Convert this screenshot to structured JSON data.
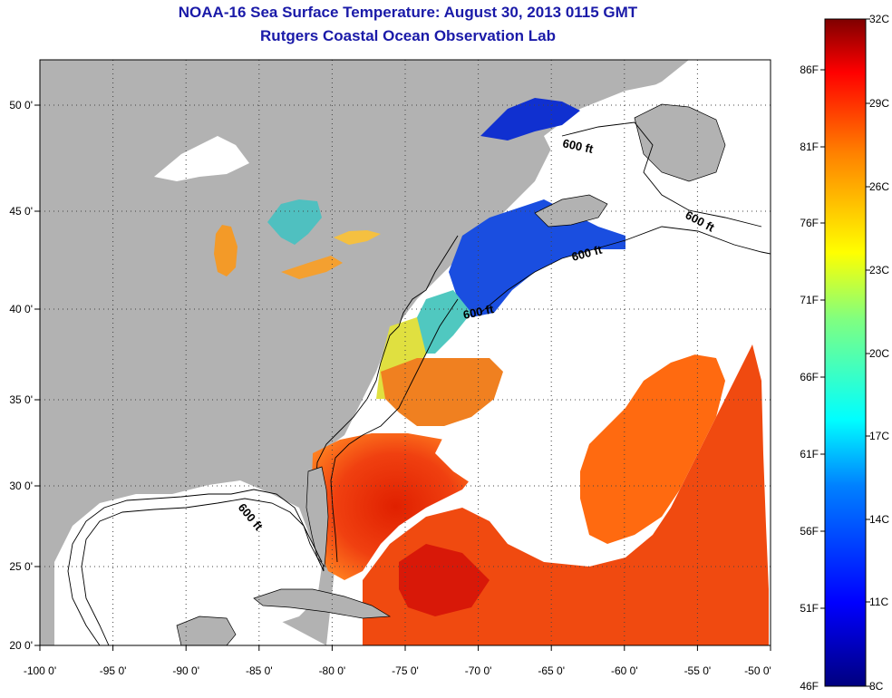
{
  "title": "NOAA-16 Sea Surface Temperature:  August 30, 2013 0115 GMT",
  "subtitle": "Rutgers Coastal Ocean Observation Lab",
  "map": {
    "lon_ticks": [
      "-100 0'",
      "-95 0'",
      "-90 0'",
      "-85 0'",
      "-80 0'",
      "-75 0'",
      "-70 0'",
      "-65 0'",
      "-60 0'",
      "-55 0'",
      "-50 0'"
    ],
    "lat_ticks": [
      "50 0'",
      "45 0'",
      "40 0'",
      "35 0'",
      "30 0'",
      "25 0'",
      "20 0'"
    ],
    "isobath_labels": [
      "600 ft",
      "600 ft",
      "600 ft",
      "600 ft",
      "600 ft"
    ],
    "colors": {
      "land": "#b2b2b2",
      "cloud": "#ffffff",
      "grid": "#444444"
    }
  },
  "colorbar": {
    "fahrenheit_labels": [
      "86F",
      "81F",
      "76F",
      "71F",
      "66F",
      "61F",
      "56F",
      "51F",
      "46F"
    ],
    "celsius_labels": [
      "32C",
      "29C",
      "26C",
      "23C",
      "20C",
      "17C",
      "14C",
      "11C",
      "8C"
    ],
    "colors": [
      "#7f0000",
      "#ff0000",
      "#ff8000",
      "#ffff00",
      "#80ff80",
      "#00ffff",
      "#0080ff",
      "#0000ff",
      "#00007f"
    ]
  }
}
